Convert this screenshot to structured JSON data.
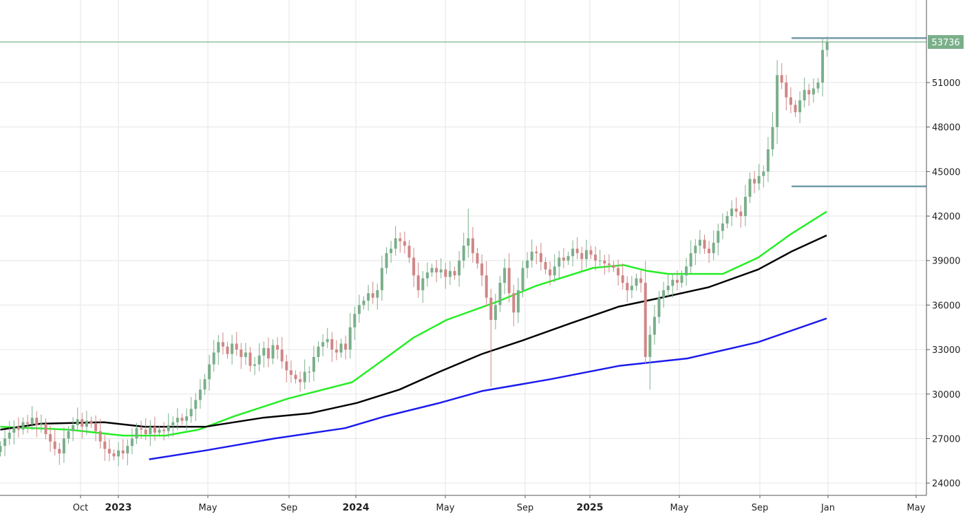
{
  "chart_data": {
    "type": "candlestick",
    "interval": "weekly",
    "first_candle_year": 2022.5,
    "colors": {
      "up": "#7aaf8a",
      "down": "#d08686",
      "ma_green": "#22ee22",
      "ma_black": "#000000",
      "ma_blue": "#1a1aee",
      "last_price_line": "#8fbf9c",
      "level_line": "#6f9aa8",
      "grid": "#e6e6e6"
    },
    "closes": [
      26500,
      27000,
      27400,
      27800,
      27600,
      28100,
      28000,
      28400,
      27900,
      28000,
      27300,
      26800,
      26300,
      26000,
      27000,
      27500,
      27900,
      28300,
      27800,
      28200,
      28000,
      27500,
      26800,
      26300,
      26000,
      25800,
      26200,
      26000,
      26500,
      27000,
      27700,
      27600,
      27300,
      27800,
      27400,
      27600,
      27500,
      27900,
      28100,
      28400,
      28200,
      28500,
      29000,
      29600,
      30300,
      31000,
      32000,
      32800,
      33500,
      33200,
      32700,
      33400,
      33000,
      32500,
      32800,
      31900,
      32000,
      32600,
      33100,
      32400,
      33300,
      33000,
      32200,
      31600,
      31300,
      31000,
      30800,
      31500,
      31500,
      32500,
      33200,
      33500,
      33700,
      33000,
      32800,
      33400,
      33000,
      34500,
      35400,
      36000,
      36300,
      36800,
      36500,
      37000,
      38500,
      39500,
      39800,
      40500,
      40300,
      40000,
      39200,
      38000,
      37000,
      37800,
      38200,
      38500,
      38200,
      38400,
      37900,
      38300,
      38000,
      39000,
      40000,
      40500,
      39500,
      38800,
      38000,
      36500,
      35000,
      36000,
      37500,
      38500,
      36800,
      35500,
      37000,
      38500,
      39000,
      39600,
      39500,
      38900,
      38400,
      38000,
      38600,
      39200,
      39000,
      39300,
      39800,
      39500,
      39100,
      39700,
      39400,
      39000,
      39000,
      38800,
      38700,
      38500,
      38000,
      37500,
      37000,
      37300,
      37800,
      37500,
      32500,
      34000,
      35200,
      36500,
      37000,
      37300,
      37700,
      37500,
      38000,
      38600,
      39500,
      40000,
      40400,
      39800,
      39500,
      40200,
      41000,
      41500,
      42000,
      42500,
      42300,
      42000,
      43300,
      44500,
      44200,
      44700,
      45000,
      46500,
      48000,
      51500,
      51000,
      50000,
      49500,
      49000,
      49800,
      50500,
      50200,
      50600,
      51000,
      53200,
      53736
    ],
    "wick_extremes": [
      {
        "index": 103,
        "high": 42500
      },
      {
        "index": 108,
        "low": 30500
      },
      {
        "index": 142,
        "low": 32000
      },
      {
        "index": 143,
        "low": 30300
      },
      {
        "index": 170,
        "high": 49000
      },
      {
        "index": 182,
        "high": 54100
      }
    ],
    "moving_averages": [
      {
        "color_key": "ma_green",
        "points": [
          [
            2022.5,
            27800
          ],
          [
            2022.79,
            27600
          ],
          [
            2023.02,
            27200
          ],
          [
            2023.2,
            27200
          ],
          [
            2023.34,
            27600
          ],
          [
            2023.49,
            28500
          ],
          [
            2023.72,
            29700
          ],
          [
            2023.99,
            30800
          ],
          [
            2024.13,
            32400
          ],
          [
            2024.25,
            33800
          ],
          [
            2024.39,
            35000
          ],
          [
            2024.6,
            36200
          ],
          [
            2024.77,
            37300
          ],
          [
            2025.01,
            38500
          ],
          [
            2025.14,
            38700
          ],
          [
            2025.24,
            38300
          ],
          [
            2025.33,
            38100
          ],
          [
            2025.56,
            38100
          ],
          [
            2025.71,
            39200
          ],
          [
            2025.85,
            40800
          ],
          [
            2026.0,
            42300
          ]
        ]
      },
      {
        "color_key": "ma_black",
        "points": [
          [
            2022.5,
            27600
          ],
          [
            2022.67,
            28000
          ],
          [
            2022.94,
            28100
          ],
          [
            2023.11,
            27800
          ],
          [
            2023.37,
            27800
          ],
          [
            2023.61,
            28400
          ],
          [
            2023.81,
            28700
          ],
          [
            2024.01,
            29400
          ],
          [
            2024.19,
            30300
          ],
          [
            2024.36,
            31500
          ],
          [
            2024.54,
            32700
          ],
          [
            2024.71,
            33600
          ],
          [
            2024.92,
            34800
          ],
          [
            2025.12,
            35900
          ],
          [
            2025.3,
            36500
          ],
          [
            2025.5,
            37200
          ],
          [
            2025.71,
            38400
          ],
          [
            2025.85,
            39600
          ],
          [
            2026.0,
            40700
          ]
        ]
      },
      {
        "color_key": "ma_blue",
        "points": [
          [
            2023.13,
            25600
          ],
          [
            2023.37,
            26200
          ],
          [
            2023.66,
            27000
          ],
          [
            2023.96,
            27700
          ],
          [
            2024.13,
            28500
          ],
          [
            2024.36,
            29400
          ],
          [
            2024.54,
            30200
          ],
          [
            2024.83,
            31000
          ],
          [
            2025.12,
            31900
          ],
          [
            2025.41,
            32400
          ],
          [
            2025.71,
            33500
          ],
          [
            2026.0,
            35100
          ]
        ]
      }
    ],
    "horizontal_lines": [
      {
        "value": 53736,
        "color_key": "last_price_line",
        "full_width": true
      },
      {
        "value": 54000,
        "color_key": "level_line",
        "full_width": false
      },
      {
        "value": 44000,
        "color_key": "level_line",
        "full_width": false
      }
    ],
    "last_price_label": "53736",
    "yticks": [
      "24000",
      "27000",
      "30000",
      "33000",
      "36000",
      "39000",
      "42000",
      "45000",
      "48000",
      "51000"
    ],
    "ytick_values": [
      24000,
      27000,
      30000,
      33000,
      36000,
      39000,
      42000,
      45000,
      48000,
      51000
    ],
    "ylim": [
      23200,
      55500
    ],
    "xticks": [
      {
        "label": "Oct",
        "year": false
      },
      {
        "label": "2023",
        "year": true
      },
      {
        "label": "May",
        "year": false
      },
      {
        "label": "Sep",
        "year": false
      },
      {
        "label": "2024",
        "year": true
      },
      {
        "label": "May",
        "year": false
      },
      {
        "label": "Sep",
        "year": false
      },
      {
        "label": "2025",
        "year": true
      },
      {
        "label": "May",
        "year": false
      },
      {
        "label": "Sep",
        "year": false
      },
      {
        "label": "Jan",
        "year": false
      },
      {
        "label": "May",
        "year": false
      }
    ],
    "grid": true,
    "axis_side": "right"
  }
}
